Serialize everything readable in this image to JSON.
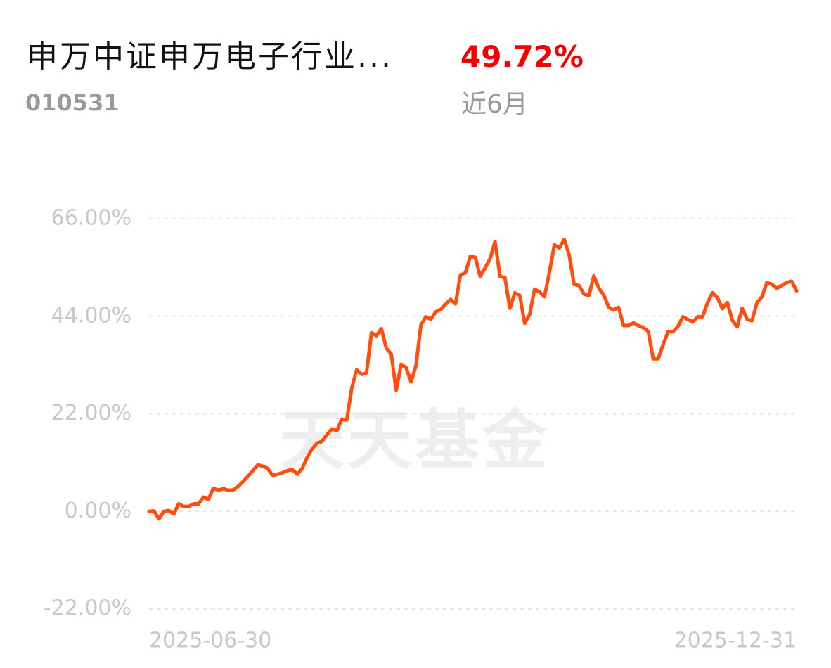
{
  "header": {
    "title": "申万中证申万电子行业...",
    "code": "010531",
    "return": "49.72%",
    "period": "近6月"
  },
  "watermark": "天天基金",
  "chart_data": {
    "type": "line",
    "categories": [
      "2025-06-30",
      null,
      null,
      null,
      null,
      null,
      null,
      null,
      null,
      null,
      null,
      null,
      null,
      null,
      null,
      null,
      null,
      null,
      null,
      null,
      null,
      null,
      null,
      null,
      null,
      null,
      null,
      null,
      null,
      null,
      null,
      null,
      null,
      null,
      null,
      null,
      null,
      null,
      null,
      null,
      null,
      null,
      null,
      null,
      null,
      null,
      null,
      null,
      null,
      null,
      null,
      null,
      null,
      null,
      null,
      null,
      null,
      null,
      null,
      null,
      null,
      null,
      null,
      null,
      null,
      null,
      null,
      null,
      null,
      null,
      null,
      null,
      null,
      null,
      null,
      null,
      null,
      null,
      null,
      null,
      null,
      null,
      null,
      null,
      null,
      null,
      null,
      null,
      null,
      null,
      null,
      null,
      null,
      null,
      null,
      null,
      null,
      null,
      null,
      null,
      null,
      null,
      null,
      null,
      null,
      null,
      null,
      null,
      null,
      null,
      null,
      null,
      null,
      null,
      null,
      null,
      null,
      null,
      null,
      null,
      null,
      null,
      null,
      null,
      null,
      null,
      null,
      null,
      null,
      null,
      null,
      "2025-12-31"
    ],
    "values": [
      0,
      0.1,
      -1.7,
      0,
      0.2,
      -0.6,
      1.7,
      1.1,
      1.1,
      1.7,
      1.7,
      3.2,
      2.7,
      5.2,
      4.8,
      5.1,
      4.8,
      4.8,
      5.6,
      6.7,
      7.9,
      9.2,
      10.5,
      10.2,
      9.7,
      8.1,
      8.4,
      8.7,
      9.2,
      9.4,
      8.4,
      9.7,
      12.2,
      14.1,
      15.4,
      15.8,
      17.3,
      18.6,
      18.2,
      20.8,
      20.6,
      27.8,
      31.9,
      30.9,
      31.2,
      40.3,
      39.6,
      41.2,
      36.8,
      35.5,
      27.3,
      33.2,
      32.4,
      29.2,
      32.8,
      42.0,
      43.9,
      43.3,
      45.0,
      45.5,
      46.7,
      47.8,
      46.8,
      53.3,
      53.8,
      57.5,
      57.3,
      53.0,
      54.9,
      57.0,
      60.8,
      53.0,
      52.7,
      45.8,
      49.3,
      48.7,
      42.4,
      44.4,
      50.1,
      49.5,
      48.4,
      53.9,
      60.1,
      59.4,
      61.3,
      57.8,
      51.2,
      50.9,
      49.0,
      48.7,
      53.1,
      50.3,
      48.8,
      46.0,
      45.4,
      46.0,
      41.9,
      41.9,
      42.5,
      41.9,
      41.4,
      40.6,
      34.4,
      34.4,
      37.6,
      40.5,
      40.5,
      41.7,
      43.9,
      43.3,
      42.7,
      43.9,
      43.9,
      47.1,
      49.3,
      48.2,
      45.7,
      47.1,
      43.1,
      41.6,
      45.8,
      43.3,
      43.0,
      47.1,
      48.4,
      51.6,
      51.2,
      50.3,
      50.9,
      51.6,
      51.9,
      49.72
    ],
    "color": "#ff4e10",
    "ylim": [
      -22,
      66
    ],
    "yticks": [
      {
        "value": -22,
        "label": "-22.00%"
      },
      {
        "value": 0,
        "label": "0.00%"
      },
      {
        "value": 22,
        "label": "22.00%"
      },
      {
        "value": 44,
        "label": "44.00%"
      },
      {
        "value": 66,
        "label": "66.00%"
      }
    ],
    "grid": true
  }
}
